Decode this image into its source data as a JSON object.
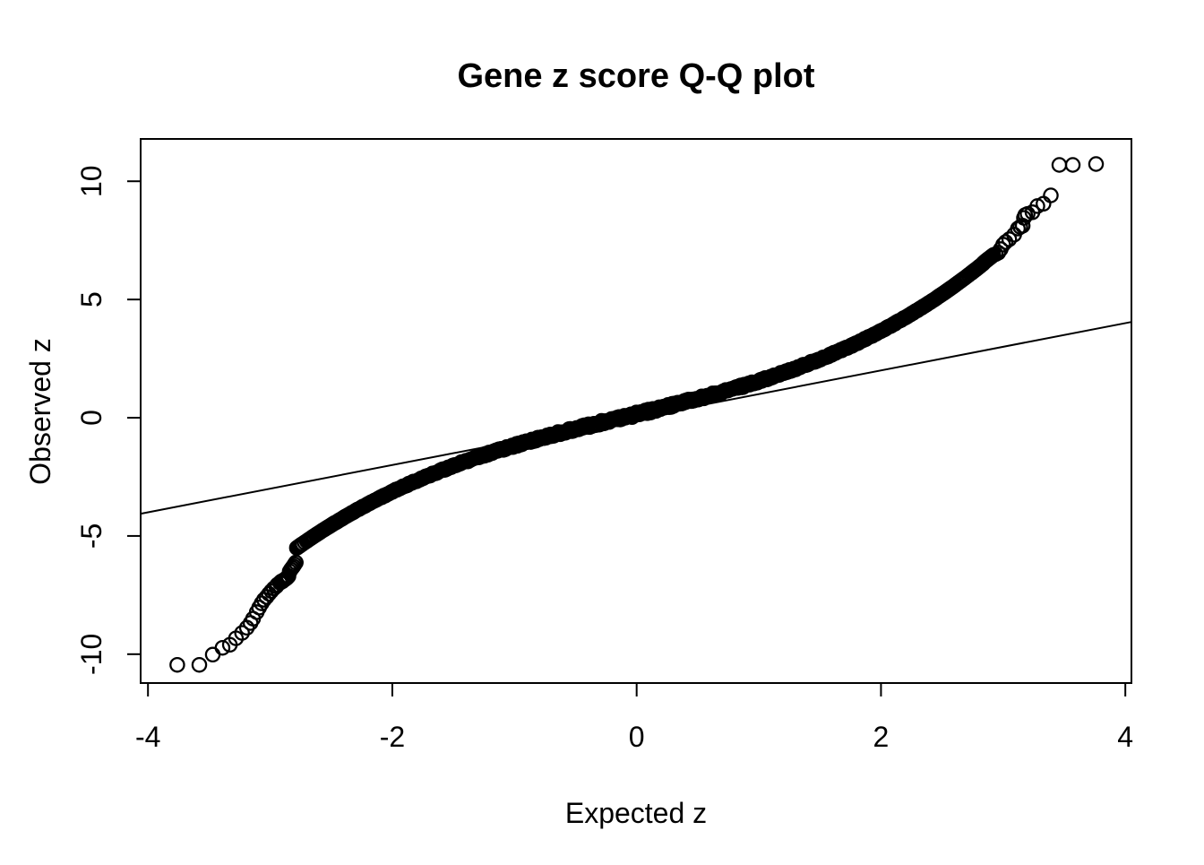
{
  "figure": {
    "background_color": "#ffffff",
    "foreground_color": "#000000"
  },
  "chart_data": {
    "type": "scatter",
    "subtype": "qq-plot",
    "title": "Gene z score Q-Q plot",
    "xlabel": "Expected z",
    "ylabel": "Observed z",
    "xlim": [
      -4.06,
      4.05
    ],
    "ylim": [
      -11.22,
      11.79
    ],
    "x_ticks": [
      -4,
      -2,
      0,
      2,
      4
    ],
    "y_ticks": [
      -10,
      -5,
      0,
      5,
      10
    ],
    "grid": false,
    "legend": null,
    "marker": "open-circle",
    "marker_color": "#000000",
    "reference_line": {
      "type": "identity",
      "slope": 1,
      "intercept": 0,
      "comment": "thin y = x line spanning the full plot width, from about (-4.06,-4.06) to (4.05,4.05)"
    },
    "band_model": {
      "comment": "dense S-shaped band of ~12000 overlapping open circles; observed = c0 + c1*e + c3*e^3 fitted to the pixels, separate coefficients for each side",
      "e_min": -2.79,
      "e_max": 2.84,
      "n_total": 12000,
      "coef_pos": [
        0.15,
        1.28,
        0.12
      ],
      "coef_neg": [
        0.15,
        1.22,
        0.105
      ],
      "jitter": 0.08
    },
    "tail_points": [
      [
        -3.76,
        -10.45
      ],
      [
        -3.58,
        -10.45
      ],
      [
        -3.47,
        -10.02
      ],
      [
        -3.39,
        -9.73
      ],
      [
        -3.33,
        -9.6
      ],
      [
        -3.28,
        -9.33
      ],
      [
        -3.23,
        -9.1
      ],
      [
        -3.19,
        -8.88
      ],
      [
        -3.16,
        -8.68
      ],
      [
        -3.14,
        -8.5
      ],
      [
        -3.11,
        -8.22
      ],
      [
        -3.09,
        -8.03
      ],
      [
        -3.07,
        -7.85
      ],
      [
        -3.05,
        -7.7
      ],
      [
        -3.03,
        -7.58
      ],
      [
        -3.01,
        -7.45
      ],
      [
        -2.99,
        -7.33
      ],
      [
        -2.97,
        -7.22
      ],
      [
        -2.95,
        -7.13
      ],
      [
        -2.94,
        -7.06
      ],
      [
        -2.92,
        -6.98
      ],
      [
        -2.91,
        -6.93
      ],
      [
        -2.9,
        -6.92
      ],
      [
        -2.89,
        -6.87
      ],
      [
        -2.88,
        -6.84
      ],
      [
        -2.87,
        -6.8
      ],
      [
        -2.86,
        -6.76
      ],
      [
        -2.85,
        -6.7
      ],
      [
        -2.84,
        -6.5
      ],
      [
        -2.83,
        -6.42
      ],
      [
        -2.82,
        -6.35
      ],
      [
        -2.81,
        -6.28
      ],
      [
        -2.8,
        -6.2
      ],
      [
        -2.79,
        -6.12
      ],
      [
        2.84,
        6.55
      ],
      [
        2.85,
        6.6
      ],
      [
        2.86,
        6.64
      ],
      [
        2.87,
        6.68
      ],
      [
        2.88,
        6.72
      ],
      [
        2.89,
        6.76
      ],
      [
        2.9,
        6.8
      ],
      [
        2.91,
        6.84
      ],
      [
        2.92,
        6.88
      ],
      [
        2.94,
        6.92
      ],
      [
        2.96,
        6.98
      ],
      [
        2.98,
        7.13
      ],
      [
        3.0,
        7.32
      ],
      [
        3.02,
        7.43
      ],
      [
        3.05,
        7.55
      ],
      [
        3.09,
        7.74
      ],
      [
        3.12,
        8.0
      ],
      [
        3.14,
        8.07
      ],
      [
        3.16,
        8.12
      ],
      [
        3.17,
        8.45
      ],
      [
        3.18,
        8.57
      ],
      [
        3.2,
        8.62
      ],
      [
        3.24,
        8.69
      ],
      [
        3.28,
        8.95
      ],
      [
        3.33,
        9.05
      ],
      [
        3.39,
        9.4
      ],
      [
        3.46,
        10.69
      ],
      [
        3.57,
        10.69
      ],
      [
        3.76,
        10.73
      ]
    ]
  }
}
